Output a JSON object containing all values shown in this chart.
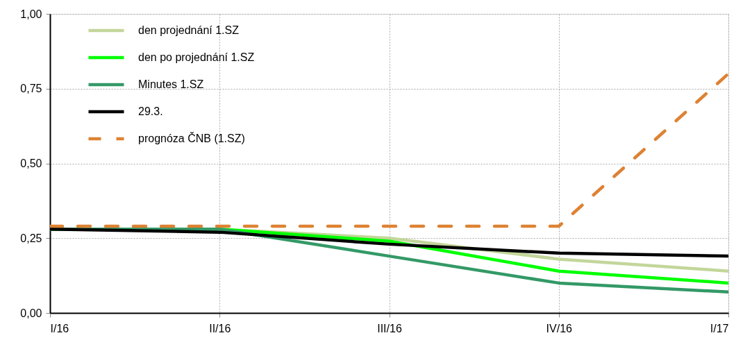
{
  "chart_data": {
    "type": "line",
    "categories": [
      "I/16",
      "II/16",
      "III/16",
      "IV/16",
      "I/17"
    ],
    "series": [
      {
        "name": "den projednání 1.SZ",
        "color": "#c3d69b",
        "values": [
          0.28,
          0.28,
          0.25,
          0.18,
          0.14
        ]
      },
      {
        "name": "den po projednání 1.SZ",
        "color": "#00ff00",
        "values": [
          0.28,
          0.28,
          0.24,
          0.14,
          0.1
        ]
      },
      {
        "name": "Minutes 1.SZ",
        "color": "#339966",
        "values": [
          0.28,
          0.28,
          0.19,
          0.1,
          0.07
        ]
      },
      {
        "name": "29.3.",
        "color": "#000000",
        "values": [
          0.28,
          0.27,
          0.23,
          0.2,
          0.19
        ]
      },
      {
        "name": "prognóza ČNB (1.SZ)",
        "color": "#dd8233",
        "line_style": "dashed",
        "values": [
          0.29,
          0.29,
          0.29,
          0.29,
          0.8
        ]
      }
    ],
    "ylim": [
      0,
      1
    ],
    "yticks": [
      {
        "value": 0,
        "label": "0,00"
      },
      {
        "value": 0.25,
        "label": "0,25"
      },
      {
        "value": 0.5,
        "label": "0,50"
      },
      {
        "value": 0.75,
        "label": "0,75"
      },
      {
        "value": 1,
        "label": "1,00"
      }
    ],
    "grid": true,
    "legend": "top left",
    "marker": "none"
  }
}
